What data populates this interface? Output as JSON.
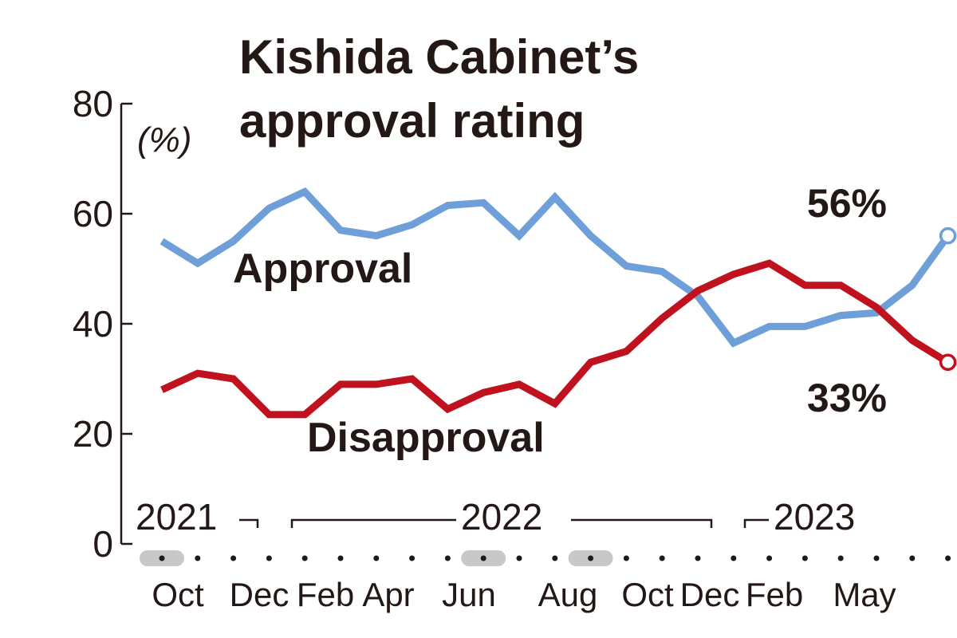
{
  "chart_data": {
    "type": "line",
    "title": [
      "Kishida Cabinet’s",
      "approval rating"
    ],
    "unit_label": "(%)",
    "ylim": [
      0,
      80
    ],
    "yticks": [
      "0",
      "20",
      "40",
      "60",
      "80"
    ],
    "grid": false,
    "years": [
      "2021",
      "2022",
      "2023"
    ],
    "month_labels": [
      "Oct",
      "Dec",
      "Feb",
      "Apr",
      "Jun",
      "Aug",
      "Oct",
      "Dec",
      "Feb",
      "May"
    ],
    "series": [
      {
        "name": "Approval",
        "color": "#6f9fd8",
        "values": [
          55,
          51,
          55,
          61,
          64,
          57,
          56,
          58,
          61.5,
          62,
          56,
          63,
          56,
          50.5,
          49.5,
          45,
          36.5,
          39.5,
          39.5,
          41.5,
          42,
          47,
          56
        ],
        "end_label": "56%"
      },
      {
        "name": "Disapproval",
        "color": "#c0111f",
        "values": [
          28,
          31,
          30,
          23.5,
          23.5,
          29,
          29,
          30,
          24.5,
          27.5,
          29,
          25.5,
          33,
          35,
          41,
          46,
          49,
          51,
          47,
          47,
          43,
          37,
          33
        ],
        "end_label": "33%"
      }
    ]
  }
}
